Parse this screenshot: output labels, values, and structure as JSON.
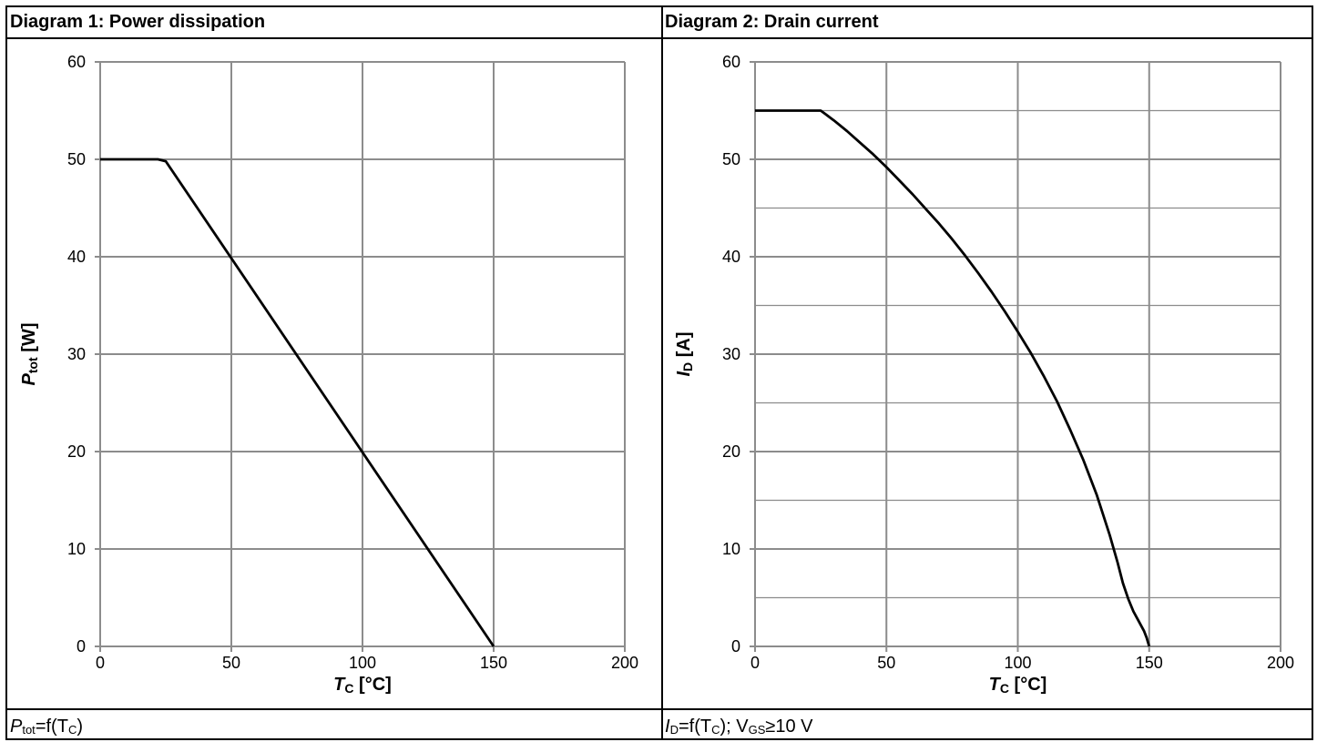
{
  "chart_data": [
    {
      "type": "line",
      "title": "Diagram 1: Power dissipation",
      "caption": {
        "main": "P",
        "sub": "tot",
        "rest": "=f(T",
        "sub2": "C",
        "end": ")"
      },
      "xlabel": {
        "main": "T",
        "sub": "C",
        "rest": " [°C]"
      },
      "ylabel": {
        "main": "P",
        "sub": "tot",
        "rest": " [W]"
      },
      "xlim": [
        0,
        200
      ],
      "ylim": [
        0,
        60
      ],
      "xticks": [
        0,
        50,
        100,
        150,
        200
      ],
      "yticks": [
        0,
        10,
        20,
        30,
        40,
        50,
        60
      ],
      "minor_yticks": [],
      "grid": true,
      "series": [
        {
          "x": [
            0,
            20,
            22,
            25,
            150
          ],
          "y": [
            50,
            50,
            50,
            49.8,
            0
          ]
        }
      ]
    },
    {
      "type": "line",
      "title": "Diagram 2: Drain current",
      "caption": {
        "main": "I",
        "sub": "D",
        "rest": "=f(T",
        "sub2": "C",
        "extra": "); V",
        "sub3": "GS",
        "end": "≥10 V"
      },
      "xlabel": {
        "main": "T",
        "sub": "C",
        "rest": " [°C]"
      },
      "ylabel": {
        "main": "I",
        "sub": "D",
        "rest": " [A]"
      },
      "xlim": [
        0,
        200
      ],
      "ylim": [
        0,
        60
      ],
      "xticks": [
        0,
        50,
        100,
        150,
        200
      ],
      "yticks": [
        0,
        10,
        20,
        30,
        40,
        50,
        60
      ],
      "minor_yticks": [
        5,
        15,
        25,
        35,
        45,
        55
      ],
      "grid": true,
      "series": [
        {
          "x": [
            0,
            25,
            27,
            30,
            35,
            40,
            45,
            50,
            55,
            60,
            65,
            70,
            75,
            80,
            85,
            90,
            95,
            100,
            105,
            110,
            115,
            120,
            125,
            130,
            135,
            138,
            140,
            142,
            144,
            146,
            148,
            149,
            150
          ],
          "y": [
            55,
            55,
            54.6,
            54,
            52.9,
            51.7,
            50.5,
            49.2,
            47.8,
            46.4,
            44.9,
            43.4,
            41.8,
            40.1,
            38.3,
            36.4,
            34.4,
            32.3,
            30.1,
            27.7,
            25.1,
            22.2,
            19.1,
            15.6,
            11.4,
            8.6,
            6.5,
            4.9,
            3.6,
            2.6,
            1.6,
            0.9,
            0
          ]
        }
      ]
    }
  ]
}
